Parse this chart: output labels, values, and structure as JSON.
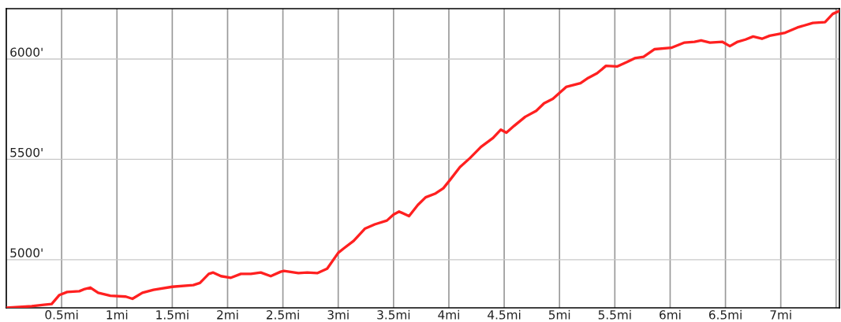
{
  "chart_data": {
    "type": "line",
    "x": [
      0,
      0.23,
      0.34,
      0.41,
      0.48,
      0.55,
      0.66,
      0.71,
      0.76,
      0.83,
      0.94,
      1.08,
      1.14,
      1.23,
      1.33,
      1.5,
      1.69,
      1.75,
      1.83,
      1.87,
      1.94,
      2.03,
      2.12,
      2.21,
      2.3,
      2.39,
      2.48,
      2.51,
      2.64,
      2.72,
      2.81,
      2.9,
      3.0,
      3.05,
      3.14,
      3.24,
      3.33,
      3.44,
      3.5,
      3.55,
      3.64,
      3.72,
      3.79,
      3.88,
      3.95,
      4.01,
      4.1,
      4.19,
      4.29,
      4.4,
      4.47,
      4.52,
      4.59,
      4.69,
      4.79,
      4.86,
      4.94,
      5.06,
      5.19,
      5.26,
      5.34,
      5.42,
      5.52,
      5.61,
      5.68,
      5.76,
      5.86,
      6.01,
      6.13,
      6.22,
      6.28,
      6.36,
      6.47,
      6.54,
      6.61,
      6.68,
      6.75,
      6.83,
      6.9,
      7.04,
      7.15,
      7.29,
      7.4,
      7.47,
      7.53
    ],
    "series": [
      {
        "color": "#ff2020",
        "values": [
          4760,
          4768,
          4775,
          4779,
          4824,
          4839,
          4843,
          4854,
          4861,
          4835,
          4820,
          4816,
          4805,
          4835,
          4850,
          4865,
          4873,
          4884,
          4929,
          4936,
          4918,
          4910,
          4929,
          4929,
          4936,
          4918,
          4940,
          4944,
          4933,
          4936,
          4933,
          4955,
          5034,
          5056,
          5094,
          5154,
          5176,
          5195,
          5225,
          5240,
          5217,
          5273,
          5311,
          5330,
          5356,
          5397,
          5461,
          5506,
          5562,
          5607,
          5648,
          5633,
          5667,
          5712,
          5742,
          5779,
          5802,
          5861,
          5880,
          5906,
          5929,
          5966,
          5963,
          5985,
          6004,
          6011,
          6049,
          6056,
          6082,
          6086,
          6093,
          6082,
          6086,
          6064,
          6086,
          6097,
          6112,
          6101,
          6116,
          6131,
          6157,
          6180,
          6184,
          6225,
          6240
        ]
      }
    ],
    "xlim": [
      0,
      7.53
    ],
    "ylim": [
      4760,
      6251
    ],
    "xticks": [
      {
        "value": 0.5,
        "label": "0.5mi"
      },
      {
        "value": 1,
        "label": "1mi"
      },
      {
        "value": 1.5,
        "label": "1.5mi"
      },
      {
        "value": 2,
        "label": "2mi"
      },
      {
        "value": 2.5,
        "label": "2.5mi"
      },
      {
        "value": 3,
        "label": "3mi"
      },
      {
        "value": 3.5,
        "label": "3.5mi"
      },
      {
        "value": 4,
        "label": "4mi"
      },
      {
        "value": 4.5,
        "label": "4.5mi"
      },
      {
        "value": 5,
        "label": "5mi"
      },
      {
        "value": 5.5,
        "label": "5.5mi"
      },
      {
        "value": 6,
        "label": "6mi"
      },
      {
        "value": 6.5,
        "label": "6.5mi"
      },
      {
        "value": 7,
        "label": "7mi"
      },
      {
        "value": 7.5,
        "label": null
      }
    ],
    "yticks": [
      {
        "value": 5000,
        "label": "5000'"
      },
      {
        "value": 5500,
        "label": "5500'"
      },
      {
        "value": 6000,
        "label": "6000'"
      }
    ],
    "grid": true,
    "line_style": "solid"
  }
}
